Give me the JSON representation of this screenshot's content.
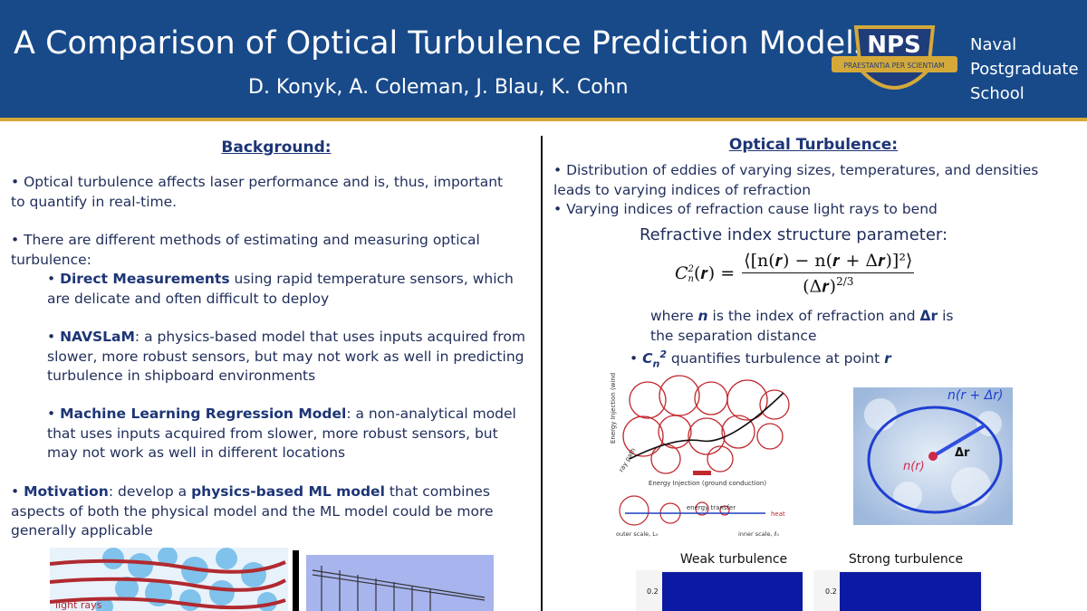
{
  "header": {
    "title": "A Comparison of Optical Turbulence Prediction Models",
    "authors": "D. Konyk, A. Coleman, J. Blau, K. Cohn",
    "logo_text": "NPS",
    "logo_motto": "PRAESTANTIA PER SCIENTIAM",
    "school": [
      "Naval",
      "Postgraduate",
      "School"
    ]
  },
  "left": {
    "heading": "Background:",
    "items": [
      [
        {
          "text": "• Optical turbulence affects laser performance and is, thus, important to quantify in real-time."
        }
      ],
      [
        {
          "text": "• There are different methods of estimating and measuring optical turbulence:"
        }
      ],
      [
        {
          "text": "• "
        },
        {
          "text": "Direct Measurements",
          "bold": true
        },
        {
          "text": " using rapid temperature sensors, which are delicate and often difficult to deploy"
        }
      ],
      [
        {
          "text": "• "
        },
        {
          "text": "NAVSLaM",
          "bold": true
        },
        {
          "text": ": a physics-based model that uses inputs acquired from slower, more robust sensors, but may not work as well in predicting turbulence in shipboard environments"
        }
      ],
      [
        {
          "text": "• "
        },
        {
          "text": "Machine Learning Regression Model",
          "bold": true
        },
        {
          "text": ": a non-analytical model that uses inputs acquired from slower, more robust sensors, but may not work as well in different locations"
        }
      ],
      [
        {
          "text": "• "
        },
        {
          "text": "Motivation",
          "bold": true
        },
        {
          "text": ": develop a "
        },
        {
          "text": "physics-based ML model",
          "bold": true
        },
        {
          "text": " that combines aspects of both the physical model and the ML model could be more generally applicable"
        }
      ]
    ],
    "figure_label": "light rays"
  },
  "right": {
    "heading": "Optical Turbulence:",
    "bullets": [
      [
        {
          "text": "• Distribution of eddies of varying sizes, temperatures, and densities leads to varying indices of refraction"
        }
      ],
      [
        {
          "text": "• Varying indices of refraction cause light rays to bend"
        }
      ]
    ],
    "parameter_title": "Refractive index structure parameter:",
    "formula": {
      "lhs_base": "C",
      "lhs_sub": "n",
      "lhs_sup": "2",
      "lhs_rest": "(𝒓) =",
      "numerator": "⟨[n(𝒓) − n(𝒓 + Δ𝒓)]²⟩",
      "denominator_base": "(Δ𝒓)",
      "denominator_sup": "2/3"
    },
    "where": [
      {
        "text": "where "
      },
      {
        "text": "n",
        "bold": true,
        "italic": true
      },
      {
        "text": " is the index of refraction and "
      },
      {
        "text": "Δr",
        "bold": true
      },
      {
        "text": " is the separation distance"
      }
    ],
    "cn2_bullet": [
      {
        "text": "• "
      },
      {
        "text": "C",
        "bold": true,
        "italic": true
      },
      {
        "text": "n",
        "bold": true,
        "italic": true,
        "sub": true
      },
      {
        "text": "2",
        "bold": true,
        "italic": true,
        "sup": true
      },
      {
        "text": " quantifies turbulence at point "
      },
      {
        "text": "r",
        "bold": true,
        "italic": true
      }
    ],
    "eddy_figure": {
      "injection_wind": "Energy Injection (wind advection)",
      "ray_path": "ray path",
      "injection_ground": "Energy Injection (ground conduction)",
      "energy_transfer": "energy transfer",
      "heat": "heat",
      "outer_scale": "outer scale, L₀",
      "inner_scale": "inner scale, ℓ₀"
    },
    "field_figure": {
      "far_label": "n(r + Δr)",
      "delta_label": "Δr",
      "near_label": "n(r)"
    },
    "panels": [
      {
        "title": "Weak turbulence",
        "tick": "0.2"
      },
      {
        "title": "Strong turbulence",
        "tick": "0.2"
      }
    ]
  }
}
